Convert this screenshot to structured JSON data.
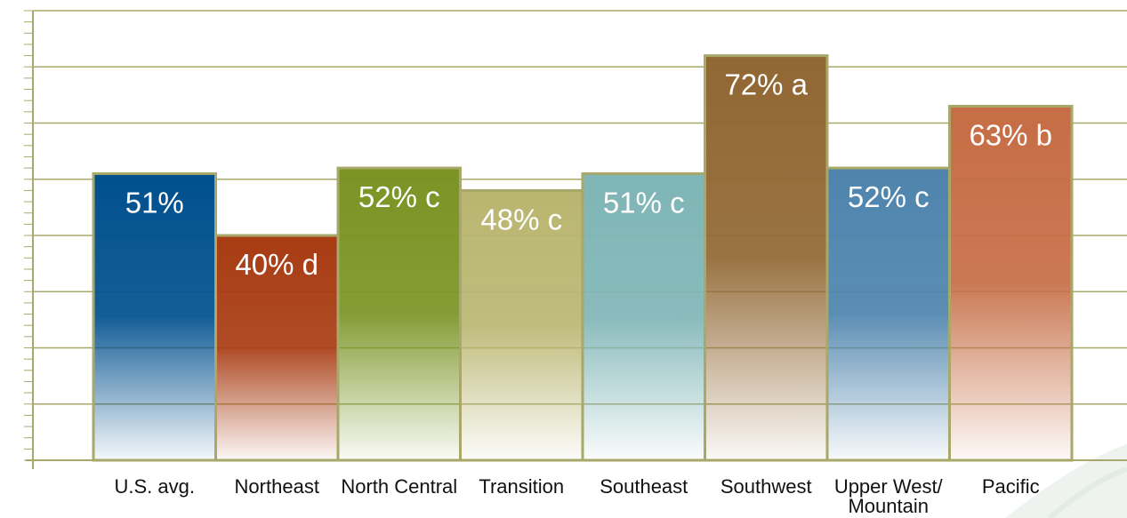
{
  "chart_data": {
    "type": "bar",
    "title": "",
    "xlabel": "",
    "ylabel": "",
    "ylim": [
      0,
      80
    ],
    "grid": true,
    "legend": "none",
    "categories": [
      "U.S. avg.",
      "Northeast",
      "North Central",
      "Transition",
      "Southeast",
      "Southwest",
      "Upper West/ Mountain",
      "Pacific"
    ],
    "category_lines": [
      [
        "U.S. avg."
      ],
      [
        "Northeast"
      ],
      [
        "North Central"
      ],
      [
        "Transition"
      ],
      [
        "Southeast"
      ],
      [
        "Southwest"
      ],
      [
        "Upper West/",
        "Mountain"
      ],
      [
        "Pacific"
      ]
    ],
    "values": [
      51,
      40,
      52,
      48,
      51,
      72,
      52,
      63
    ],
    "data_labels": [
      "51%",
      "40% d",
      "52% c",
      "48% c",
      "51% c",
      "72% a",
      "52% c",
      "63% b"
    ],
    "colors": [
      "#00508e",
      "#a83c13",
      "#7a9424",
      "#bab671",
      "#7fb5b6",
      "#916733",
      "#4e84ad",
      "#c66d45"
    ],
    "axis_color": "#a8a86a",
    "grid_color": "#a8a86a"
  }
}
